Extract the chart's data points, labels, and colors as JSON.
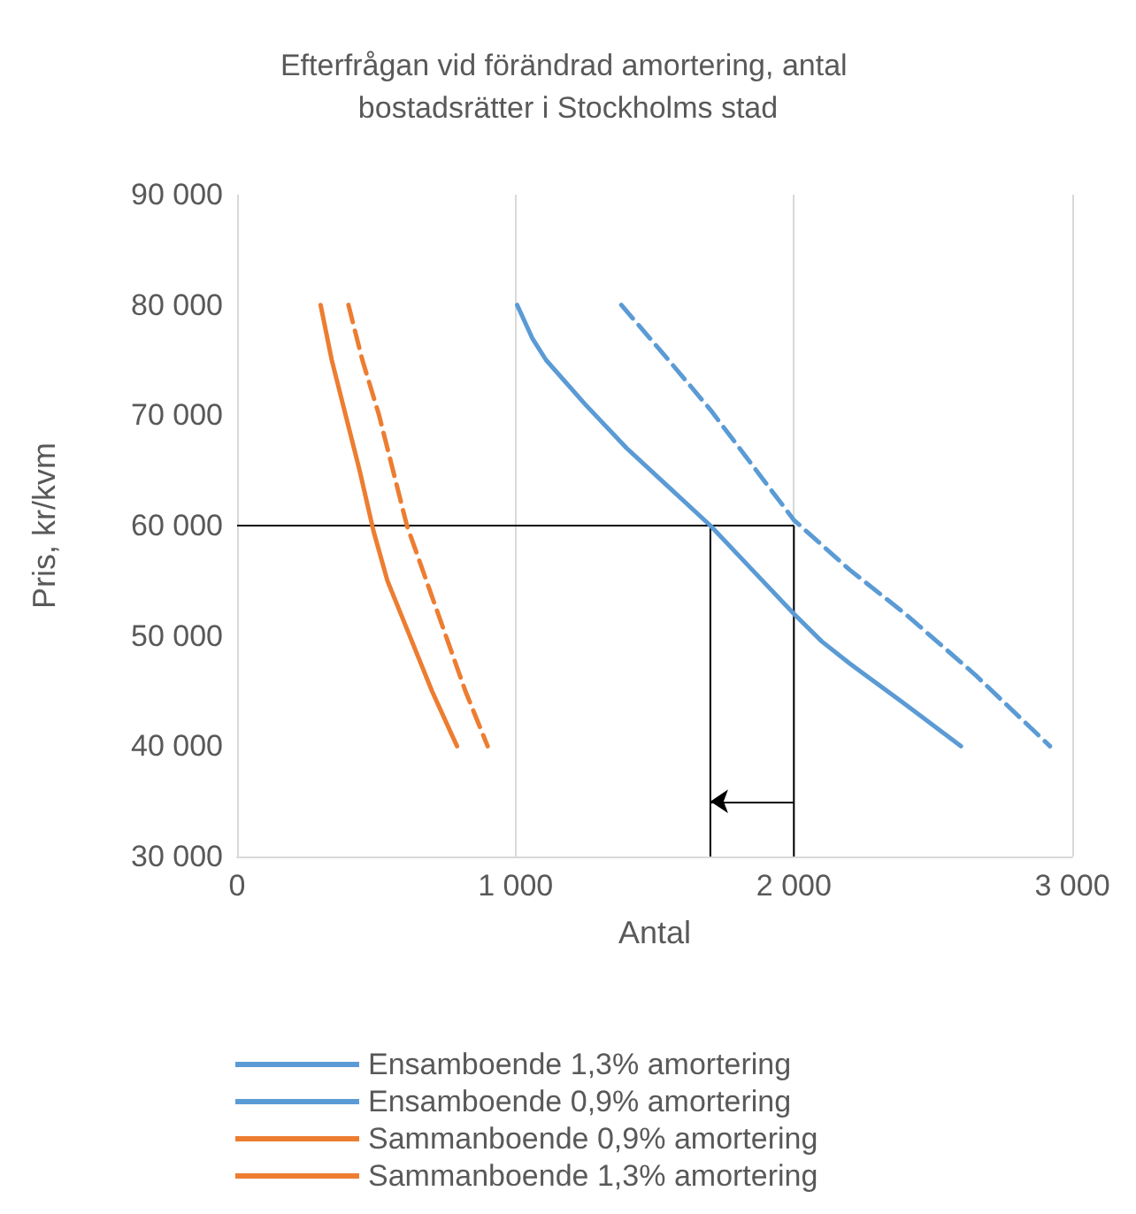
{
  "chart_data": {
    "type": "line",
    "title": "Efterfrågan vid förändrad amortering, antal bostadsrätter i Stockholms stad",
    "xlabel": "Antal",
    "ylabel": "Pris, kr/kvm",
    "xlim": [
      0,
      3000
    ],
    "xticks": [
      0,
      {
        "value": 1000,
        "label": "1 000"
      },
      {
        "value": 2000,
        "label": "2 000"
      },
      {
        "value": 3000,
        "label": "3 000"
      }
    ],
    "ylim": [
      30000,
      90000
    ],
    "yticks": [
      {
        "value": 30000,
        "label": "30 000"
      },
      {
        "value": 40000,
        "label": "40 000"
      },
      {
        "value": 50000,
        "label": "50 000"
      },
      {
        "value": 60000,
        "label": "60 000"
      },
      {
        "value": 70000,
        "label": "70 000"
      },
      {
        "value": 80000,
        "label": "80 000"
      },
      {
        "value": 90000,
        "label": "90 000"
      }
    ],
    "grid": "x",
    "legend": "bottom",
    "marker": "none",
    "series": [
      {
        "name": "Ensamboende 1,3% amortering",
        "color": "#5b9bd5",
        "line_style": "solid",
        "x": [
          1006,
          1060,
          1110,
          1250,
          1400,
          1550,
          1700,
          1850,
          2000,
          2100,
          2200,
          2400,
          2600
        ],
        "values": [
          80000,
          77000,
          75000,
          71000,
          67000,
          63500,
          60000,
          56000,
          52000,
          49500,
          47500,
          43800,
          40000
        ]
      },
      {
        "name": "Ensamboende 0,9% amortering",
        "color": "#5b9bd5",
        "line_style": "dashed",
        "x": [
          1380,
          1550,
          1700,
          1850,
          2000,
          2200,
          2400,
          2650,
          2920
        ],
        "values": [
          80000,
          75000,
          70500,
          65500,
          60500,
          56000,
          52000,
          46500,
          40000
        ]
      },
      {
        "name": "Sammanboende 0,9% amortering",
        "color": "#ed7d31",
        "line_style": "dashed",
        "x": [
          400,
          450,
          510,
          560,
          610,
          680,
          750,
          820,
          900
        ],
        "values": [
          80000,
          75000,
          70000,
          65000,
          60000,
          55000,
          50000,
          45000,
          40000
        ]
      },
      {
        "name": "Sammanboende 1,3% amortering",
        "color": "#ed7d31",
        "line_style": "solid",
        "x": [
          300,
          340,
          390,
          440,
          490,
          540,
          620,
          700,
          790
        ],
        "values": [
          80000,
          75000,
          70000,
          65000,
          59500,
          55000,
          50000,
          45000,
          40000
        ]
      }
    ],
    "ref_lines": [
      {
        "axis": "y",
        "value": 60000,
        "color": "#000000"
      },
      {
        "axis": "x",
        "value": 1700,
        "color": "#000000"
      },
      {
        "axis": "x",
        "value": 2000,
        "color": "#000000"
      }
    ]
  }
}
